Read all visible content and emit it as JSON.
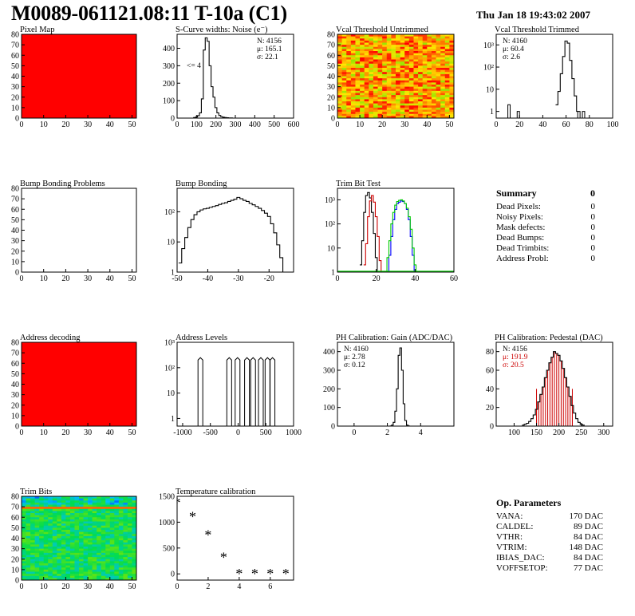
{
  "header": {
    "title": "M0089-061121.08:11 T-10a (C1)",
    "date": "Thu Jan 18 19:43:02 2007"
  },
  "colors": {
    "plot_frame": "#000000",
    "red_map": "#ff0000",
    "green_curve": "#00cc00",
    "blue_curve": "#0000ff",
    "red_curve": "#cc0000",
    "stat_red": "#cc0000"
  },
  "chart_data": [
    {
      "id": "pixel_map",
      "type": "heatmap",
      "title": "Pixel Map",
      "xticks": [
        "0",
        "10",
        "20",
        "30",
        "40",
        "50"
      ],
      "yticks": [
        "0",
        "10",
        "20",
        "30",
        "40",
        "50",
        "60",
        "70",
        "80"
      ],
      "xlim": [
        0,
        52
      ],
      "ylim": [
        0,
        80
      ],
      "fill": "uniform",
      "fill_color": "#ff0000",
      "palette_ticks": [
        "10",
        "9",
        "8",
        "7",
        "6",
        "5",
        "4",
        "3",
        "2",
        "1",
        "0"
      ]
    },
    {
      "id": "scurve_widths",
      "type": "line",
      "title": "S-Curve widths: Noise (e⁻)",
      "xticks": [
        "0",
        "100",
        "200",
        "300",
        "400",
        "500",
        "600"
      ],
      "yticks": [
        "0",
        "100",
        "200",
        "300",
        "400"
      ],
      "xlim": [
        0,
        600
      ],
      "ylim": [
        0,
        480
      ],
      "annotation": "<= 4",
      "stats": [
        {
          "label": "N: 4156"
        },
        {
          "label": "μ: 165.1"
        },
        {
          "label": "σ: 22.1"
        }
      ],
      "x": [
        80,
        90,
        100,
        110,
        120,
        130,
        140,
        150,
        160,
        170,
        180,
        190,
        200,
        210,
        220,
        230,
        240,
        250,
        260,
        270,
        280,
        290,
        300
      ],
      "values": [
        0,
        3,
        6,
        14,
        30,
        110,
        390,
        460,
        440,
        300,
        180,
        120,
        60,
        30,
        15,
        8,
        5,
        3,
        2,
        1,
        1,
        0,
        0
      ]
    },
    {
      "id": "vcal_untrimmed",
      "type": "heatmap",
      "title": "Vcal Threshold Untrimmed",
      "xticks": [
        "0",
        "10",
        "20",
        "30",
        "40",
        "50"
      ],
      "yticks": [
        "0",
        "10",
        "20",
        "30",
        "40",
        "50",
        "60",
        "70",
        "80"
      ],
      "xlim": [
        0,
        52
      ],
      "ylim": [
        0,
        80
      ],
      "fill": "noise",
      "palette_ticks": [
        "100",
        "80",
        "60",
        "40",
        "20",
        "0"
      ]
    },
    {
      "id": "vcal_trimmed",
      "type": "line",
      "title": "Vcal Threshold Trimmed",
      "log": true,
      "xticks": [
        "0",
        "20",
        "40",
        "60",
        "80",
        "100"
      ],
      "yticks": [
        "1",
        "10",
        "10²",
        "10³"
      ],
      "xlim": [
        0,
        100
      ],
      "ylim": [
        0.5,
        3000
      ],
      "stats": [
        {
          "label": "N: 4160"
        },
        {
          "label": "μ: 60.4"
        },
        {
          "label": "σ: 2.6"
        }
      ],
      "x": [
        52,
        54,
        56,
        58,
        60,
        62,
        64,
        66,
        68,
        70
      ],
      "values": [
        2,
        8,
        50,
        300,
        1500,
        1200,
        200,
        30,
        5,
        1
      ],
      "outliers": [
        {
          "x": 11,
          "v": 2
        },
        {
          "x": 19,
          "v": 1
        },
        {
          "x": 71,
          "v": 1
        },
        {
          "x": 75,
          "v": 1
        }
      ]
    },
    {
      "id": "bump_map",
      "type": "heatmap",
      "title": "Bump Bonding Problems",
      "xticks": [
        "0",
        "10",
        "20",
        "30",
        "40",
        "50"
      ],
      "yticks": [
        "0",
        "10",
        "20",
        "30",
        "40",
        "50",
        "60",
        "70",
        "80"
      ],
      "xlim": [
        0,
        52
      ],
      "ylim": [
        0,
        80
      ],
      "fill": "none",
      "palette_ticks": [
        "5",
        "4",
        "3",
        "2",
        "1",
        "0",
        "-1",
        "-2",
        "-3",
        "-4",
        "-5"
      ]
    },
    {
      "id": "bump_bonding",
      "type": "line",
      "title": "Bump Bonding",
      "log": true,
      "xticks": [
        "-50",
        "-40",
        "-30",
        "-20"
      ],
      "yticks": [
        "1",
        "10",
        "10²"
      ],
      "xlim": [
        -50,
        -12
      ],
      "ylim": [
        1,
        600
      ],
      "x": [
        -49,
        -48,
        -47,
        -46,
        -45,
        -44,
        -43,
        -42,
        -41,
        -40,
        -39,
        -38,
        -37,
        -36,
        -35,
        -34,
        -33,
        -32,
        -31,
        -30,
        -29,
        -28,
        -27,
        -26,
        -25,
        -24,
        -23,
        -22,
        -21,
        -20,
        -19,
        -18,
        -17,
        -16,
        -15
      ],
      "values": [
        2,
        6,
        14,
        30,
        55,
        80,
        100,
        115,
        125,
        130,
        140,
        150,
        160,
        175,
        190,
        200,
        220,
        240,
        260,
        300,
        270,
        240,
        220,
        190,
        170,
        150,
        130,
        110,
        90,
        70,
        40,
        20,
        8,
        3,
        1
      ]
    },
    {
      "id": "trim_bit_test",
      "type": "line",
      "title": "Trim Bit Test",
      "log": true,
      "xticks": [
        "0",
        "20",
        "40",
        "60"
      ],
      "yticks": [
        "1",
        "10",
        "10²",
        "10³"
      ],
      "xlim": [
        0,
        60
      ],
      "ylim": [
        1,
        3000
      ],
      "series": [
        {
          "color": "#000000",
          "x": [
            12,
            13,
            14,
            15,
            16,
            17,
            18,
            19,
            20,
            21
          ],
          "values": [
            2,
            20,
            300,
            1500,
            2000,
            1200,
            300,
            40,
            4,
            1
          ]
        },
        {
          "color": "#cc0000",
          "x": [
            14,
            15,
            16,
            17,
            18,
            19,
            20,
            21,
            22,
            23
          ],
          "values": [
            2,
            15,
            200,
            900,
            1500,
            800,
            200,
            30,
            3,
            1
          ]
        },
        {
          "color": "#0000ff",
          "x": [
            26,
            27,
            28,
            29,
            30,
            31,
            32,
            33,
            34,
            35,
            36,
            37,
            38,
            39,
            40
          ],
          "values": [
            1,
            5,
            30,
            150,
            400,
            700,
            800,
            900,
            850,
            700,
            400,
            150,
            30,
            5,
            1
          ]
        },
        {
          "color": "#00cc00",
          "x": [
            25,
            26,
            27,
            28,
            29,
            30,
            31,
            32,
            33,
            34,
            35,
            36,
            37,
            38,
            39,
            40,
            41
          ],
          "values": [
            1,
            4,
            20,
            100,
            300,
            600,
            850,
            950,
            1000,
            900,
            700,
            450,
            200,
            60,
            10,
            2,
            1
          ]
        }
      ]
    },
    {
      "id": "address_decoding",
      "type": "heatmap",
      "title": "Address decoding",
      "xticks": [
        "0",
        "10",
        "20",
        "30",
        "40",
        "50"
      ],
      "yticks": [
        "0",
        "10",
        "20",
        "30",
        "40",
        "50",
        "60",
        "70",
        "80"
      ],
      "xlim": [
        0,
        52
      ],
      "ylim": [
        0,
        80
      ],
      "fill": "uniform",
      "fill_color": "#ff0000",
      "palette_ticks": [
        "1",
        "0.9",
        "0.8",
        "0.7",
        "0.6",
        "0.5",
        "0.4",
        "0.3",
        "0.2",
        "0.1",
        "0"
      ]
    },
    {
      "id": "address_levels",
      "type": "line",
      "title": "Address Levels",
      "log": true,
      "xticks": [
        "-1000",
        "-500",
        "0",
        "500",
        "1000"
      ],
      "yticks": [
        "1",
        "10",
        "10²",
        "10³"
      ],
      "xlim": [
        -1100,
        1000
      ],
      "ylim": [
        0.5,
        1000
      ],
      "peaks": [
        -680,
        -160,
        -10,
        160,
        270,
        410,
        530,
        620
      ],
      "peak_height": 200
    },
    {
      "id": "ph_gain",
      "type": "line",
      "title": "PH Calibration: Gain (ADC/DAC)",
      "xticks": [
        "0",
        "2",
        "4"
      ],
      "yticks": [
        "0",
        "100",
        "200",
        "300",
        "400"
      ],
      "xlim": [
        -1,
        6
      ],
      "ylim": [
        0,
        450
      ],
      "stats": [
        {
          "label": "N: 4160"
        },
        {
          "label": "μ: 2.78"
        },
        {
          "label": "σ: 0.12"
        }
      ],
      "x": [
        2.2,
        2.3,
        2.4,
        2.5,
        2.6,
        2.7,
        2.8,
        2.9,
        3.0,
        3.1,
        3.2,
        3.3
      ],
      "values": [
        1,
        5,
        20,
        80,
        200,
        380,
        420,
        300,
        120,
        30,
        5,
        1
      ]
    },
    {
      "id": "ph_pedestal",
      "type": "line",
      "title": "PH Calibration: Pedestal (DAC)",
      "xticks": [
        "100",
        "150",
        "200",
        "250",
        "300"
      ],
      "yticks": [
        "0",
        "20",
        "40",
        "60",
        "80"
      ],
      "xlim": [
        60,
        320
      ],
      "ylim": [
        0,
        90
      ],
      "stats": [
        {
          "label": "N: 4156"
        },
        {
          "label": "μ: 191.9",
          "red": true
        },
        {
          "label": "σ: 20.5",
          "red": true
        }
      ],
      "fit_range": [
        150,
        230
      ],
      "cut_lines": [
        150,
        230
      ],
      "x": [
        120,
        125,
        130,
        135,
        140,
        145,
        150,
        155,
        160,
        165,
        170,
        175,
        180,
        185,
        190,
        195,
        200,
        205,
        210,
        215,
        220,
        225,
        230,
        235,
        240,
        245,
        250,
        255
      ],
      "values": [
        1,
        2,
        3,
        5,
        8,
        12,
        18,
        26,
        34,
        42,
        52,
        60,
        68,
        74,
        80,
        78,
        76,
        70,
        62,
        52,
        42,
        32,
        22,
        14,
        8,
        4,
        2,
        1
      ]
    },
    {
      "id": "trim_bits",
      "type": "heatmap",
      "title": "Trim Bits",
      "xticks": [
        "0",
        "10",
        "20",
        "30",
        "40",
        "50"
      ],
      "yticks": [
        "0",
        "10",
        "20",
        "30",
        "40",
        "50",
        "60",
        "70",
        "80"
      ],
      "xlim": [
        0,
        52
      ],
      "ylim": [
        0,
        80
      ],
      "fill": "trim",
      "palette_ticks": [
        "16",
        "14",
        "12",
        "10",
        "8",
        "6",
        "4",
        "2",
        "0"
      ]
    },
    {
      "id": "temperature",
      "type": "scatter",
      "title": "Temperature calibration",
      "xticks": [
        "0",
        "2",
        "4",
        "6"
      ],
      "yticks": [
        "0",
        "500",
        "1000",
        "1500"
      ],
      "xlim": [
        0,
        7.5
      ],
      "ylim": [
        -120,
        1500
      ],
      "x": [
        0,
        1,
        2,
        3,
        4,
        5,
        6,
        7
      ],
      "values": [
        1380,
        1110,
        750,
        320,
        5,
        5,
        5,
        5
      ]
    }
  ],
  "summary": {
    "title": "Summary",
    "total": "0",
    "rows": [
      {
        "label": "Dead Pixels:",
        "value": "0"
      },
      {
        "label": "Noisy Pixels:",
        "value": "0"
      },
      {
        "label": "Mask defects:",
        "value": "0"
      },
      {
        "label": "Dead Bumps:",
        "value": "0"
      },
      {
        "label": "Dead Trimbits:",
        "value": "0"
      },
      {
        "label": "Address Probl:",
        "value": "0"
      }
    ]
  },
  "op_params": {
    "title": "Op. Parameters",
    "rows": [
      {
        "label": "VANA:",
        "value": "170 DAC"
      },
      {
        "label": "CALDEL:",
        "value": "89 DAC"
      },
      {
        "label": "VTHR:",
        "value": "84 DAC"
      },
      {
        "label": "VTRIM:",
        "value": "148 DAC"
      },
      {
        "label": "IBIAS_DAC:",
        "value": "84 DAC"
      },
      {
        "label": "VOFFSETOP:",
        "value": "77 DAC"
      }
    ]
  }
}
